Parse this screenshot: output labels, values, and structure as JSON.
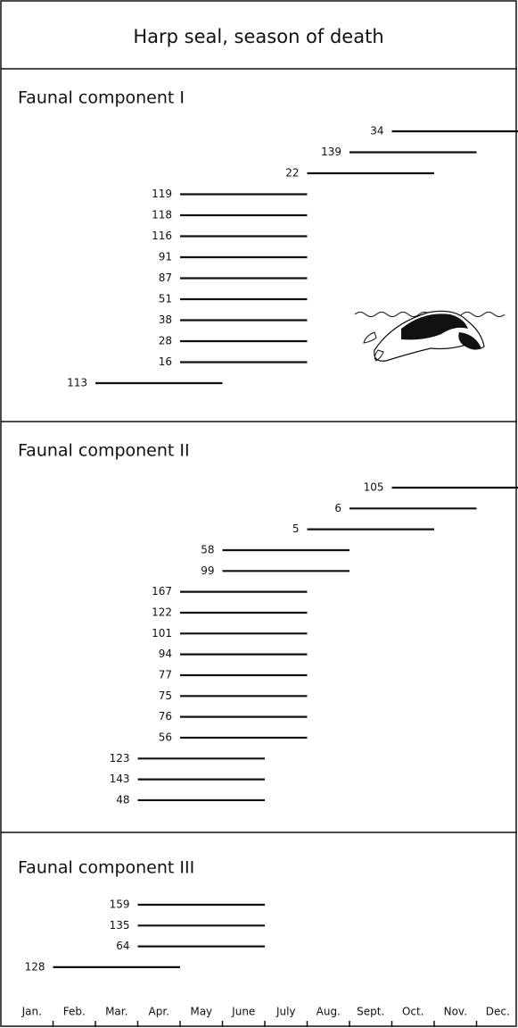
{
  "title": "Harp seal, season of death",
  "months": [
    "Jan.",
    "Feb.",
    "Mar.",
    "Apr.",
    "May",
    "June",
    "July",
    "Aug.",
    "Sept.",
    "Oct.",
    "Nov.",
    "Dec."
  ],
  "sections": [
    {
      "title": "Faunal component I",
      "rows": [
        {
          "label": "34",
          "start": 9,
          "end": 12
        },
        {
          "label": "139",
          "start": 8,
          "end": 11
        },
        {
          "label": "22",
          "start": 7,
          "end": 10
        },
        {
          "label": "119",
          "start": 4,
          "end": 7
        },
        {
          "label": "118",
          "start": 4,
          "end": 7
        },
        {
          "label": "116",
          "start": 4,
          "end": 7
        },
        {
          "label": "91",
          "start": 4,
          "end": 7
        },
        {
          "label": "87",
          "start": 4,
          "end": 7
        },
        {
          "label": "51",
          "start": 4,
          "end": 7
        },
        {
          "label": "38",
          "start": 4,
          "end": 7
        },
        {
          "label": "28",
          "start": 4,
          "end": 7
        },
        {
          "label": "16",
          "start": 4,
          "end": 7
        },
        {
          "label": "113",
          "start": 2,
          "end": 5
        }
      ]
    },
    {
      "title": "Faunal component II",
      "rows": [
        {
          "label": "105",
          "start": 9,
          "end": 12
        },
        {
          "label": "6",
          "start": 8,
          "end": 11
        },
        {
          "label": "5",
          "start": 7,
          "end": 10
        },
        {
          "label": "58",
          "start": 5,
          "end": 8
        },
        {
          "label": "99",
          "start": 5,
          "end": 8
        },
        {
          "label": "167",
          "start": 4,
          "end": 7
        },
        {
          "label": "122",
          "start": 4,
          "end": 7
        },
        {
          "label": "101",
          "start": 4,
          "end": 7
        },
        {
          "label": "94",
          "start": 4,
          "end": 7
        },
        {
          "label": "77",
          "start": 4,
          "end": 7
        },
        {
          "label": "75",
          "start": 4,
          "end": 7
        },
        {
          "label": "76",
          "start": 4,
          "end": 7
        },
        {
          "label": "56",
          "start": 4,
          "end": 7
        },
        {
          "label": "123",
          "start": 3,
          "end": 6
        },
        {
          "label": "143",
          "start": 3,
          "end": 6
        },
        {
          "label": "48",
          "start": 3,
          "end": 6
        }
      ]
    },
    {
      "title": "Faunal component III",
      "rows": [
        {
          "label": "159",
          "start": 3,
          "end": 6
        },
        {
          "label": "135",
          "start": 3,
          "end": 6
        },
        {
          "label": "64",
          "start": 3,
          "end": 6
        },
        {
          "label": "128",
          "start": 1,
          "end": 4
        }
      ]
    }
  ]
}
